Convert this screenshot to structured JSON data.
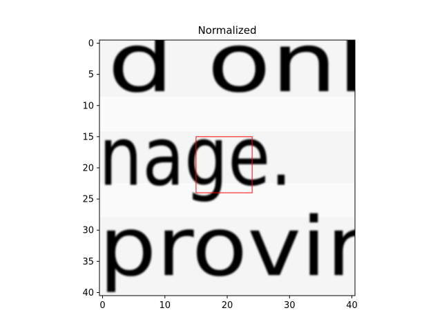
{
  "chart_data": {
    "type": "heatmap",
    "title": "Normalized",
    "colormap": "gray",
    "origin": "upper",
    "extent": {
      "x": [
        -0.5,
        40.5
      ],
      "y": [
        40.5,
        -0.5
      ]
    },
    "xlim": [
      -0.5,
      40.5
    ],
    "ylim": [
      40.5,
      -0.5
    ],
    "x_ticks": [
      0,
      10,
      20,
      30,
      40
    ],
    "y_ticks": [
      0,
      5,
      10,
      15,
      20,
      25,
      30,
      35,
      40
    ],
    "image_content": {
      "description": "Grayscale crop of scanned text showing three lines of characters",
      "text_lines": [
        {
          "text": "d onl",
          "row_center": 4.5
        },
        {
          "text": "nage.",
          "row_center": 19.5
        },
        {
          "text": "provir",
          "row_center": 34.0
        }
      ]
    },
    "highlight_box": {
      "x": [
        15,
        24
      ],
      "y": [
        15,
        24
      ],
      "edge_color": "#ff0000"
    }
  }
}
